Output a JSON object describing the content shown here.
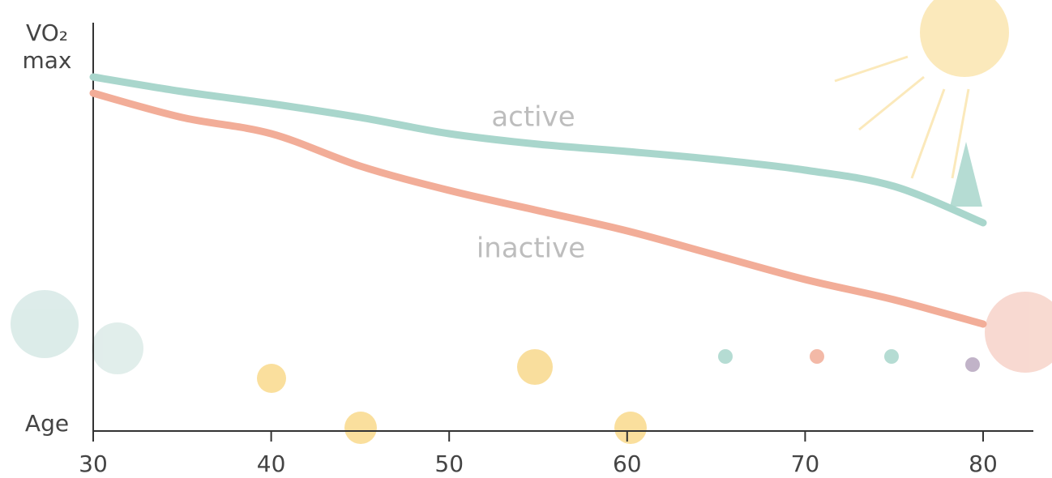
{
  "chart_data": {
    "type": "line",
    "ylabel": "VO₂ max",
    "xlabel": "Age",
    "x": [
      30,
      35,
      40,
      45,
      50,
      55,
      60,
      65,
      70,
      75,
      80
    ],
    "series": [
      {
        "name": "active",
        "color": "#a9d6cc",
        "values": [
          87,
          83.4,
          80.4,
          77,
          73,
          70.4,
          68.6,
          66.6,
          64,
          60,
          51
        ]
      },
      {
        "name": "inactive",
        "color": "#f2ad98",
        "values": [
          83,
          77,
          73,
          65,
          59,
          54,
          49,
          43,
          37,
          32,
          26
        ]
      }
    ],
    "xlim": [
      30,
      80
    ],
    "xticks": [
      30,
      40,
      50,
      60,
      70,
      80
    ],
    "ylim": [
      0,
      100
    ]
  }
}
